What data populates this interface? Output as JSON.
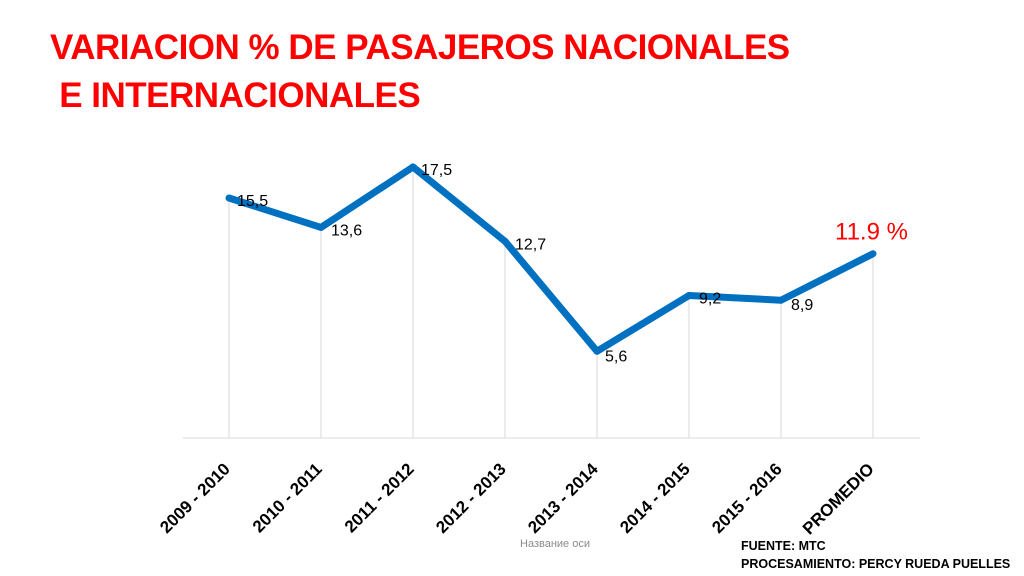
{
  "title": {
    "line1": "VARIACION % DE PASAJEROS NACIONALES",
    "line2": " E INTERNACIONALES"
  },
  "x_axis_title": "Название оси",
  "source": {
    "line1": "FUENTE: MTC",
    "line2": "PROCESAMIENTO: PERCY RUEDA PUELLES"
  },
  "colors": {
    "title": "#ff0000",
    "line": "#0070c0",
    "highlight_label": "#ff0000",
    "gridline": "#d9d9d9"
  },
  "chart_data": {
    "type": "line",
    "categories": [
      "2009 - 2010",
      "2010 - 2011",
      "2011 - 2012",
      "2012 - 2013",
      "2013 - 2014",
      "2014 - 2015",
      "2015 - 2016",
      "PROMEDIO"
    ],
    "values": [
      15.5,
      13.6,
      17.5,
      12.7,
      5.6,
      9.2,
      8.9,
      11.9
    ],
    "data_labels": [
      "15,5",
      "13,6",
      "17,5",
      "12,7",
      "5,6",
      "9,2",
      "8,9",
      "11.9 %"
    ],
    "highlighted_index": 7,
    "xlabel": "Название оси",
    "ylabel": "",
    "ylim": [
      0,
      17.5
    ],
    "grid": "vertical drop lines at each category",
    "legend": "none"
  }
}
